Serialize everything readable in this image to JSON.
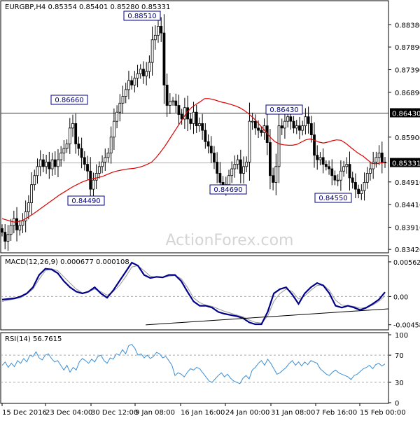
{
  "chart_data": [
    {
      "type": "candlestick",
      "panel": "price",
      "header": "EURGBP,H4  0.85354 0.85401 0.85280 0.85331",
      "yticks": [
        "0.88380",
        "0.87890",
        "0.87390",
        "0.86890",
        "0.85900",
        "0.84910",
        "0.84410",
        "0.83910",
        "0.83420"
      ],
      "ylim": [
        0.8336,
        0.8865
      ],
      "current_price": "0.85331",
      "horizontal_line": {
        "label": "0.86430",
        "value": 0.8643
      },
      "annotations": [
        {
          "label": "0.88510",
          "price": 0.8851
        },
        {
          "label": "0.86660",
          "price": 0.8666
        },
        {
          "label": "0.84490",
          "price": 0.8449
        },
        {
          "label": "0.86430",
          "price": 0.8643
        },
        {
          "label": "0.84690",
          "price": 0.8469
        },
        {
          "label": "0.84550",
          "price": 0.8455
        }
      ],
      "price_path": [
        0.838,
        0.836,
        0.8375,
        0.8395,
        0.841,
        0.8385,
        0.8395,
        0.8405,
        0.8425,
        0.8445,
        0.8485,
        0.8505,
        0.8525,
        0.854,
        0.8525,
        0.8535,
        0.852,
        0.854,
        0.8525,
        0.854,
        0.8555,
        0.8565,
        0.8575,
        0.861,
        0.862,
        0.8575,
        0.8565,
        0.8545,
        0.853,
        0.8515,
        0.8475,
        0.8495,
        0.851,
        0.8525,
        0.8535,
        0.8545,
        0.8555,
        0.859,
        0.8625,
        0.8645,
        0.8665,
        0.868,
        0.8695,
        0.8715,
        0.8705,
        0.872,
        0.873,
        0.874,
        0.8725,
        0.8735,
        0.8755,
        0.8805,
        0.8815,
        0.8835,
        0.882,
        0.8705,
        0.866,
        0.8668,
        0.867,
        0.866,
        0.864,
        0.863,
        0.8655,
        0.863,
        0.862,
        0.8645,
        0.8615,
        0.862,
        0.8605,
        0.858,
        0.857,
        0.8555,
        0.8535,
        0.851,
        0.849,
        0.8478,
        0.8485,
        0.8505,
        0.852,
        0.853,
        0.854,
        0.851,
        0.8525,
        0.8535,
        0.8625,
        0.8625,
        0.861,
        0.8605,
        0.86,
        0.8615,
        0.8578,
        0.8505,
        0.849,
        0.8525,
        0.8615,
        0.861,
        0.8625,
        0.8635,
        0.8625,
        0.861,
        0.8615,
        0.8605,
        0.8615,
        0.8635,
        0.862,
        0.8595,
        0.855,
        0.854,
        0.8545,
        0.853,
        0.8525,
        0.852,
        0.8505,
        0.8495,
        0.8495,
        0.8515,
        0.8525,
        0.853,
        0.85,
        0.849,
        0.8475,
        0.8465,
        0.8472,
        0.849,
        0.851,
        0.852,
        0.8535,
        0.8545,
        0.8555,
        0.8535,
        0.8533
      ],
      "ma_path": [
        0.841,
        0.8407,
        0.8404,
        0.8402,
        0.8404,
        0.8408,
        0.8414,
        0.842,
        0.8427,
        0.8434,
        0.8441,
        0.8448,
        0.8455,
        0.8462,
        0.8468,
        0.8474,
        0.848,
        0.8485,
        0.849,
        0.8494,
        0.8497,
        0.8499,
        0.8501,
        0.8504,
        0.8508,
        0.8512,
        0.8515,
        0.8517,
        0.8519,
        0.852,
        0.8521,
        0.8523,
        0.8526,
        0.853,
        0.8535,
        0.8545,
        0.8557,
        0.857,
        0.8585,
        0.86,
        0.8615,
        0.863,
        0.8645,
        0.8655,
        0.8662,
        0.8668,
        0.8675,
        0.8675,
        0.8673,
        0.867,
        0.8667,
        0.8665,
        0.8662,
        0.8659,
        0.8655,
        0.8649,
        0.8642,
        0.8633,
        0.8623,
        0.8612,
        0.8601,
        0.8589,
        0.858,
        0.8575,
        0.8573,
        0.8572,
        0.8572,
        0.8574,
        0.8579,
        0.8584,
        0.8586,
        0.8583,
        0.8579,
        0.8577,
        0.8579,
        0.8582,
        0.8584,
        0.8583,
        0.8577,
        0.8569,
        0.8561,
        0.8554,
        0.8548,
        0.854,
        0.8532,
        0.8531,
        0.8533,
        0.8534
      ],
      "ma_color": "#dd0000",
      "series": [
        {
          "name": "EURGBP"
        }
      ]
    },
    {
      "type": "line",
      "panel": "macd",
      "header": "MACD(12,26,9) 0.000677 0.000108",
      "yticks": [
        "0.005627",
        "0.00",
        "-0.004586"
      ],
      "ylim": [
        -0.0053,
        0.0063
      ],
      "macd_values": [
        -0.0005,
        -0.0004,
        -0.0003,
        0.0,
        0.0005,
        0.0015,
        0.0035,
        0.0045,
        0.0044,
        0.0038,
        0.0025,
        0.0015,
        0.0008,
        0.0005,
        0.0008,
        0.0015,
        0.0005,
        -0.0002,
        0.001,
        0.0025,
        0.004,
        0.0055,
        0.005,
        0.0035,
        0.003,
        0.0032,
        0.0031,
        0.0035,
        0.0035,
        0.0025,
        0.0008,
        -0.0008,
        -0.0015,
        -0.0015,
        -0.0018,
        -0.0025,
        -0.0028,
        -0.003,
        -0.0032,
        -0.0035,
        -0.0042,
        -0.0045,
        -0.0045,
        -0.0025,
        0.0005,
        0.0012,
        0.0015,
        0.0003,
        -0.0012,
        0.0005,
        0.0015,
        0.0022,
        0.0018,
        0.0005,
        -0.0015,
        -0.0018,
        -0.0015,
        -0.0018,
        -0.0022,
        -0.0018,
        -0.0012,
        -0.0005,
        0.0007
      ],
      "signal_values": [
        -0.0008,
        -0.0006,
        -0.0004,
        -0.0002,
        0.0004,
        0.0012,
        0.0028,
        0.0042,
        0.0045,
        0.0042,
        0.0032,
        0.0022,
        0.0012,
        0.0006,
        0.0008,
        0.0012,
        0.0008,
        0.0002,
        0.0008,
        0.0018,
        0.0032,
        0.0048,
        0.005,
        0.0042,
        0.0033,
        0.0031,
        0.0031,
        0.0033,
        0.0034,
        0.0029,
        0.0015,
        -0.0002,
        -0.001,
        -0.0014,
        -0.0016,
        -0.002,
        -0.0024,
        -0.0027,
        -0.003,
        -0.0033,
        -0.0038,
        -0.0042,
        -0.0043,
        -0.0032,
        -0.0008,
        0.0005,
        0.0012,
        0.0008,
        -0.0004,
        0.0001,
        0.001,
        0.0018,
        0.0019,
        0.001,
        -0.0006,
        -0.0014,
        -0.0015,
        -0.0016,
        -0.0019,
        -0.0018,
        -0.0014,
        -0.0008,
        0.0001
      ],
      "trendline": {
        "x0": 0.375,
        "y0": -0.0046,
        "x1": 1.0,
        "y1": -0.002
      },
      "series": [
        {
          "name": "MACD"
        },
        {
          "name": "Signal"
        }
      ]
    },
    {
      "type": "line",
      "panel": "rsi",
      "header": "RSI(14) 56.7615",
      "yticks": [
        "100",
        "70",
        "30",
        "0"
      ],
      "ylim": [
        0,
        100
      ],
      "levels": [
        70,
        30
      ],
      "values": [
        55,
        60,
        52,
        58,
        53,
        62,
        58,
        65,
        60,
        70,
        68,
        75,
        66,
        63,
        70,
        72,
        65,
        60,
        62,
        55,
        48,
        55,
        45,
        52,
        48,
        60,
        65,
        62,
        58,
        64,
        60,
        68,
        70,
        62,
        58,
        66,
        64,
        72,
        70,
        78,
        72,
        84,
        86,
        80,
        70,
        72,
        66,
        70,
        65,
        68,
        74,
        72,
        66,
        68,
        62,
        55,
        40,
        44,
        42,
        38,
        45,
        50,
        48,
        52,
        50,
        44,
        38,
        32,
        30,
        35,
        40,
        44,
        38,
        42,
        36,
        32,
        30,
        28,
        36,
        40,
        35,
        48,
        52,
        58,
        62,
        55,
        64,
        58,
        50,
        42,
        44,
        48,
        52,
        58,
        62,
        55,
        60,
        54,
        60,
        56,
        62,
        60,
        58,
        50,
        46,
        42,
        40,
        45,
        48,
        44,
        42,
        40,
        38,
        34,
        40,
        42,
        46,
        50,
        52,
        55,
        50,
        56,
        58,
        54,
        57
      ],
      "series": [
        {
          "name": "RSI"
        }
      ]
    }
  ],
  "xaxis": {
    "ticks": [
      "15 Dec 2016",
      "23 Dec 04:00",
      "30 Dec 12:00",
      "9 Jan 08:00",
      "16 Jan 16:00",
      "24 Jan 00:00",
      "31 Jan 08:00",
      "7 Feb 16:00",
      "15 Feb 00:00"
    ]
  },
  "watermark": "ActionForex.com",
  "colors": {
    "candle": "#000000",
    "ma": "#dd0000",
    "macd": "#00008b",
    "signal": "#999999",
    "rsi": "#3a8fd6",
    "level_line": "#888888",
    "watermark": "#d4d4d4"
  }
}
